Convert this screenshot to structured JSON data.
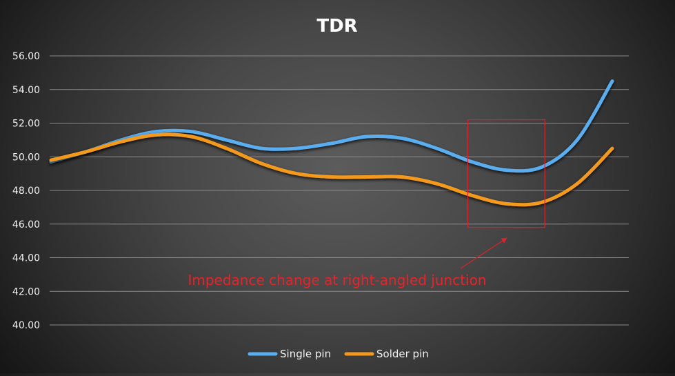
{
  "chart_data": {
    "type": "line",
    "title": "TDR",
    "xlabel": "",
    "ylabel": "",
    "ylim": [
      40,
      56
    ],
    "yticks": [
      "40.00",
      "42.00",
      "44.00",
      "46.00",
      "48.00",
      "50.00",
      "52.00",
      "54.00",
      "56.00"
    ],
    "x": [
      0,
      1,
      2,
      3,
      4,
      5,
      6,
      7,
      8,
      9,
      10,
      11,
      12,
      13,
      14,
      15,
      16
    ],
    "series": [
      {
        "name": "Single pin",
        "color": "#5aaef0",
        "values": [
          49.7,
          50.3,
          51.0,
          51.5,
          51.5,
          51.0,
          50.5,
          50.5,
          50.8,
          51.2,
          51.1,
          50.5,
          49.7,
          49.2,
          49.4,
          51.0,
          54.5
        ]
      },
      {
        "name": "Solder pin",
        "color": "#f39a1e",
        "values": [
          49.8,
          50.3,
          50.9,
          51.3,
          51.2,
          50.5,
          49.6,
          49.0,
          48.8,
          48.8,
          48.8,
          48.4,
          47.7,
          47.2,
          47.3,
          48.4,
          50.5
        ]
      }
    ],
    "grid": true,
    "legend": "bottom",
    "annotation": {
      "text": "Impedance change at right-angled junction",
      "color": "#e8232a",
      "box_x": [
        12,
        14
      ],
      "box_y": [
        45.8,
        52.2
      ]
    }
  }
}
